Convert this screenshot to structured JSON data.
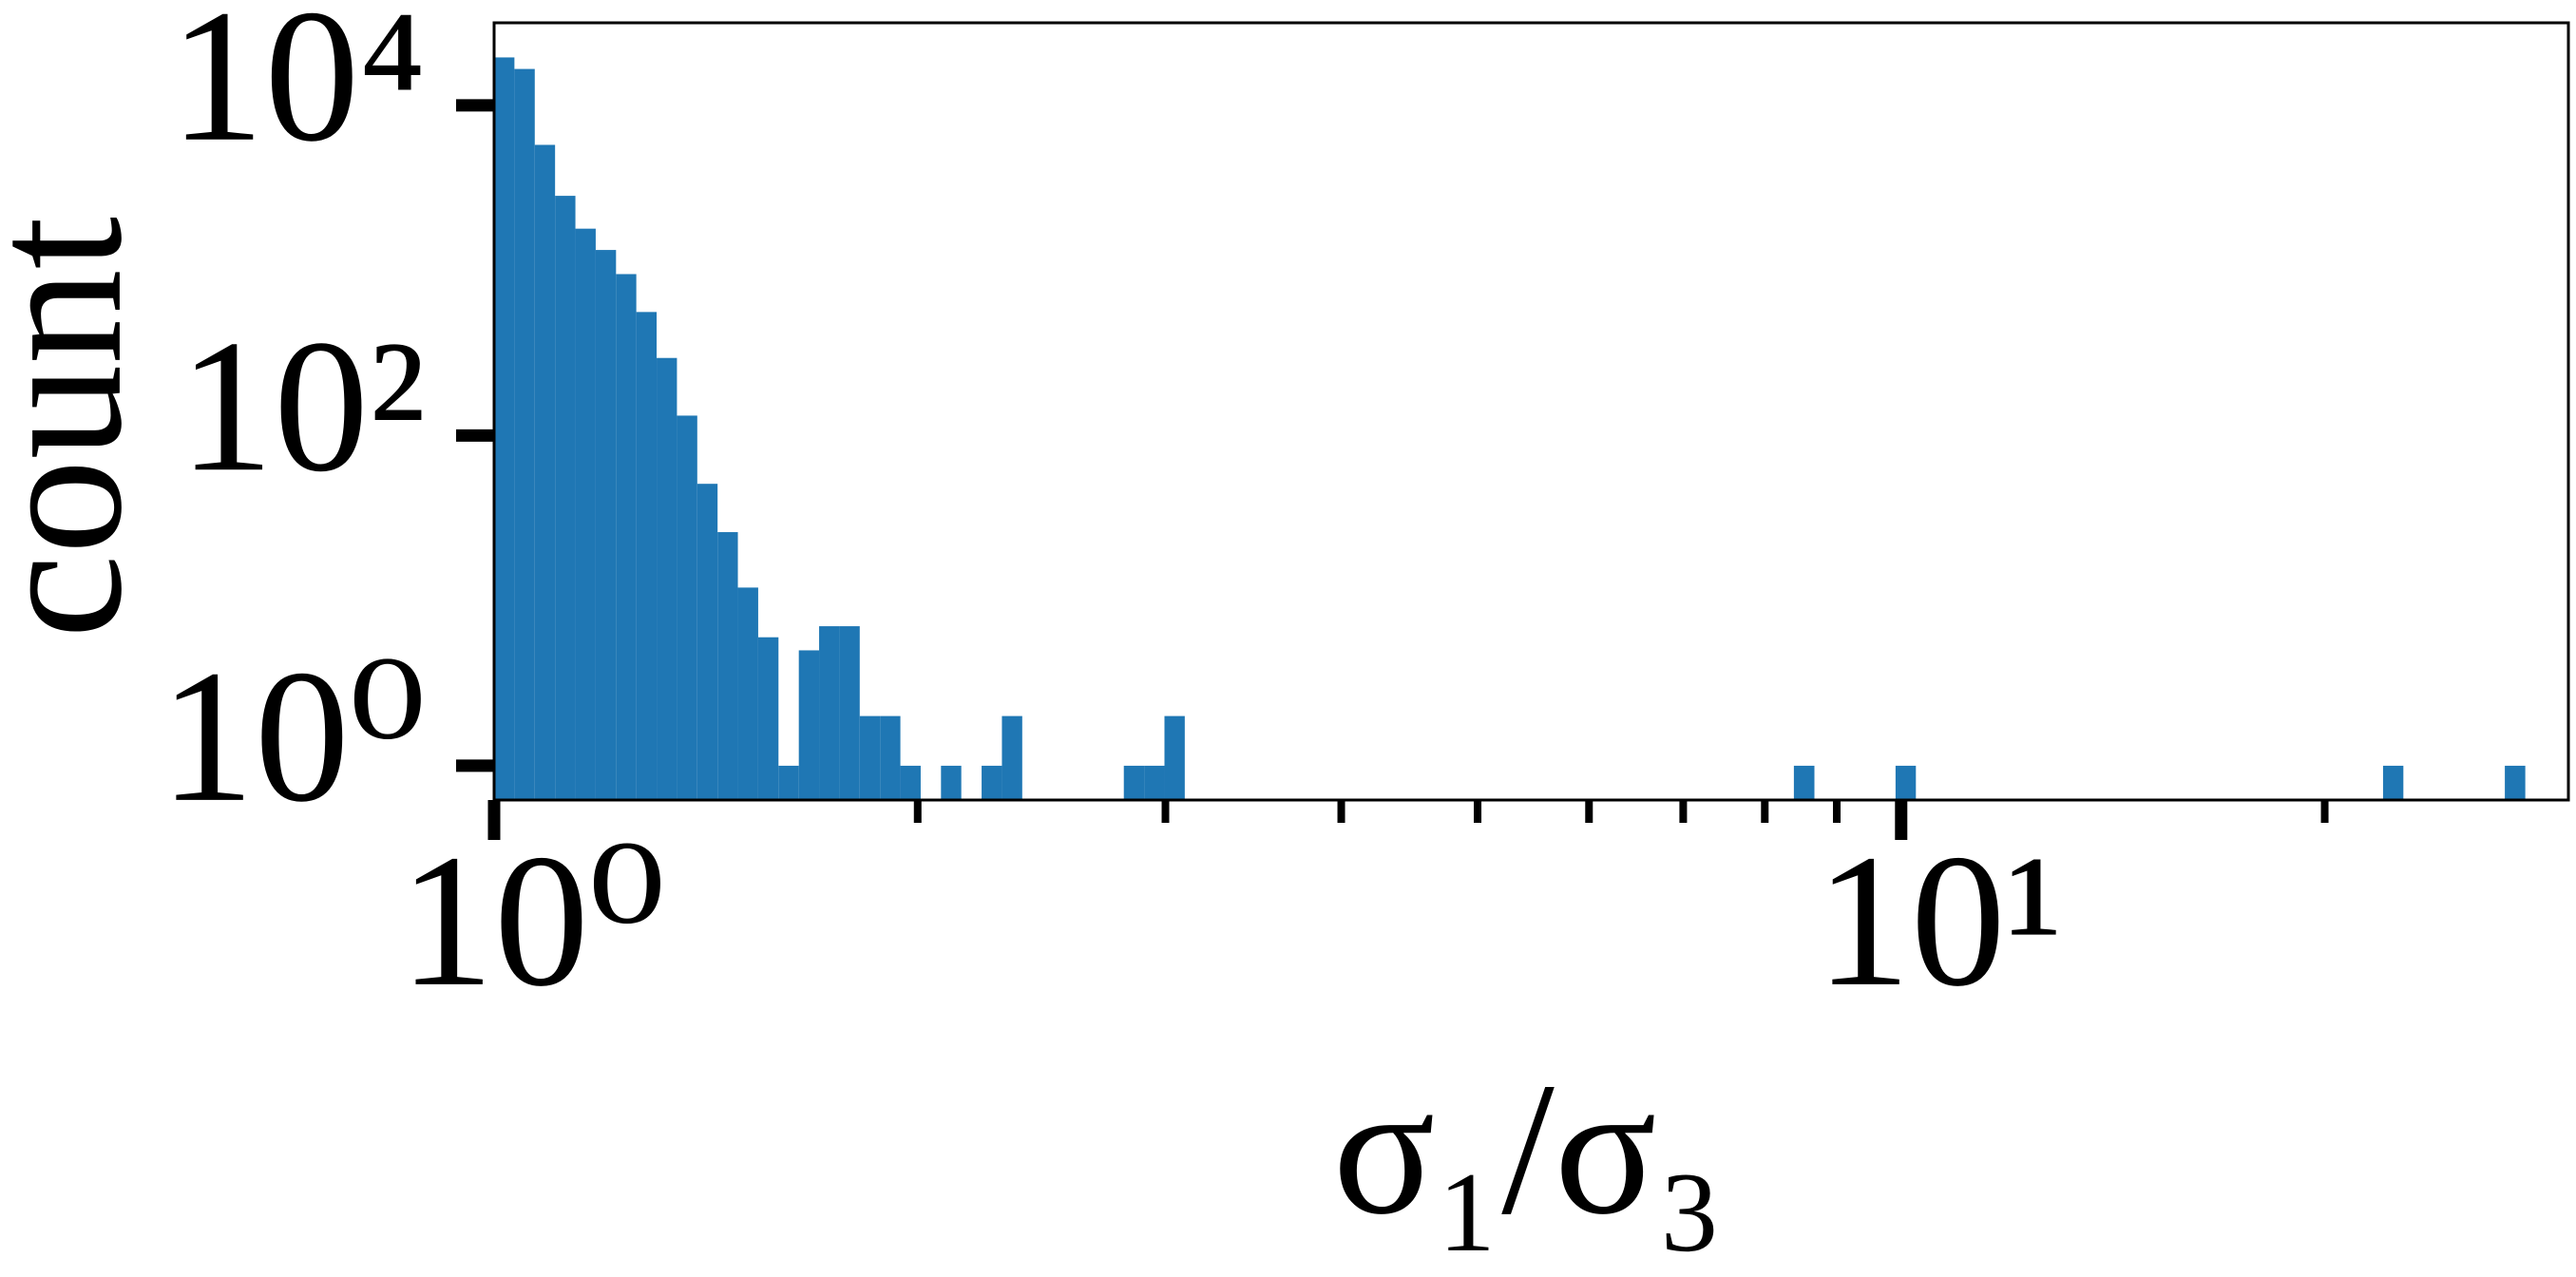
{
  "chart_data": {
    "type": "histogram",
    "xlabel": "σ₁/σ₃",
    "ylabel": "count",
    "bins": [
      1,
      1.0338,
      1.0688,
      1.1049,
      1.1423,
      1.1809,
      1.2208,
      1.262,
      1.3047,
      1.3488,
      1.3944,
      1.4415,
      1.4902,
      1.5406,
      1.5926,
      1.6465,
      1.7021,
      1.7596,
      1.8191,
      1.8806,
      1.9442,
      2.0099,
      2.0778,
      2.148,
      2.2206,
      2.2957,
      2.3733,
      2.8025,
      2.8973,
      2.9952,
      3.0964,
      8.3899,
      8.6767,
      9.9088,
      10.244,
      22.003,
      22.747,
      26.856,
      27.77
    ],
    "values": [
      19500,
      16600,
      5760,
      2830,
      1790,
      1330,
      950,
      560,
      295,
      132,
      51,
      26,
      12,
      6,
      1,
      5,
      7,
      7,
      2,
      2,
      1,
      0,
      1,
      0,
      1,
      2,
      0,
      1,
      1,
      2,
      0,
      1,
      0,
      1,
      0,
      1,
      0,
      1
    ],
    "color": "#1f77b4",
    "xscale": "log",
    "yscale": "log",
    "xlim": [
      1,
      29.8
    ],
    "ylim": [
      0.62,
      31600
    ],
    "xticks": [
      {
        "value": 1,
        "label": "10⁰"
      },
      {
        "value": 10,
        "label": "10¹"
      }
    ],
    "xminorticks": [
      2,
      3,
      4,
      5,
      6,
      7,
      8,
      9,
      20
    ],
    "yticks": [
      {
        "value": 1,
        "label": "10⁰"
      },
      {
        "value": 100,
        "label": "10²"
      },
      {
        "value": 10000,
        "label": "10⁴"
      }
    ],
    "grid": false
  }
}
